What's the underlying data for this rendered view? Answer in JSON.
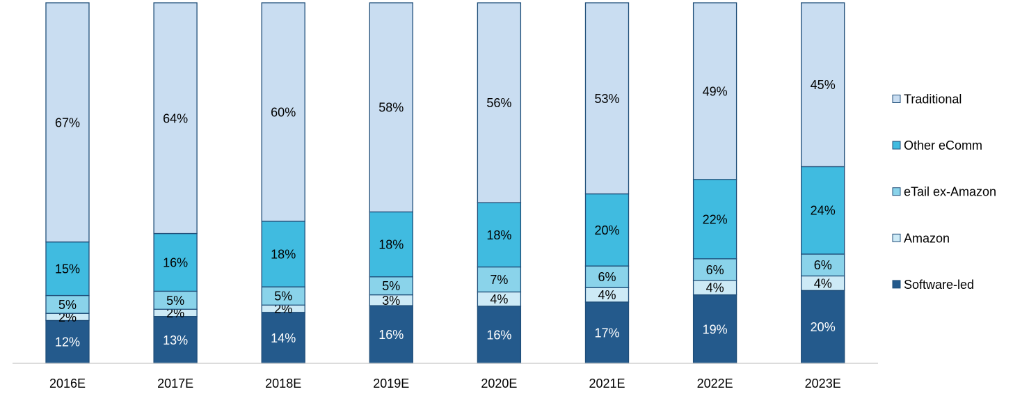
{
  "chart_data": {
    "type": "bar",
    "stacked": true,
    "normalized": true,
    "categories": [
      "2016E",
      "2017E",
      "2018E",
      "2019E",
      "2020E",
      "2021E",
      "2022E",
      "2023E"
    ],
    "series": [
      {
        "name": "Software-led",
        "color": "#245a8c",
        "label_color": "#ffffff",
        "values": [
          12,
          13,
          14,
          16,
          16,
          17,
          19,
          20
        ]
      },
      {
        "name": "Amazon",
        "color": "#cdeaf6",
        "label_color": "#000000",
        "values": [
          2,
          2,
          2,
          3,
          4,
          4,
          4,
          4
        ]
      },
      {
        "name": "eTail ex-Amazon",
        "color": "#8ad3ea",
        "label_color": "#000000",
        "values": [
          5,
          5,
          5,
          5,
          7,
          6,
          6,
          6
        ]
      },
      {
        "name": "Other eComm",
        "color": "#40bbe0",
        "label_color": "#000000",
        "values": [
          15,
          16,
          18,
          18,
          18,
          20,
          22,
          24
        ]
      },
      {
        "name": "Traditional",
        "color": "#c9ddf1",
        "label_color": "#000000",
        "values": [
          67,
          64,
          60,
          58,
          56,
          53,
          49,
          45
        ]
      }
    ],
    "value_suffix": "%",
    "legend_order": [
      "Traditional",
      "Other eComm",
      "eTail ex-Amazon",
      "Amazon",
      "Software-led"
    ],
    "legend_position": "right",
    "grid": false,
    "bar_outline_color": "#1f4e79"
  }
}
